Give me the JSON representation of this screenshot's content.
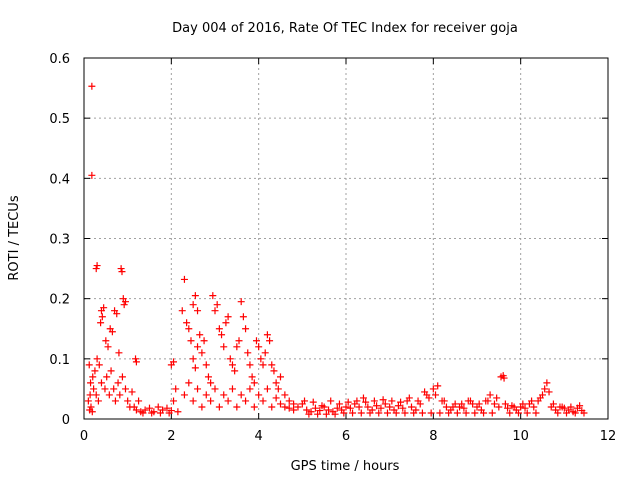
{
  "chart_data": {
    "type": "scatter",
    "title": "Day 004 of 2016, Rate Of TEC Index for receiver goja",
    "xlabel": "GPS time / hours",
    "ylabel": "ROTI / TECUs",
    "xlim": [
      0,
      12
    ],
    "ylim": [
      0,
      0.6
    ],
    "xticks": [
      "0",
      "2",
      "4",
      "6",
      "8",
      "10",
      "12"
    ],
    "yticks": [
      "0",
      "0.1",
      "0.2",
      "0.3",
      "0.4",
      "0.5",
      "0.6"
    ],
    "grid": true,
    "marker": "plus",
    "series_color": "#ff0000",
    "series": [
      {
        "name": "ROTI",
        "points": [
          [
            0.18,
            0.553
          ],
          [
            0.18,
            0.405
          ],
          [
            0.3,
            0.255
          ],
          [
            0.28,
            0.25
          ],
          [
            0.85,
            0.25
          ],
          [
            0.87,
            0.245
          ],
          [
            0.9,
            0.2
          ],
          [
            0.95,
            0.195
          ],
          [
            0.92,
            0.19
          ],
          [
            0.4,
            0.18
          ],
          [
            0.42,
            0.17
          ],
          [
            0.38,
            0.16
          ],
          [
            0.45,
            0.185
          ],
          [
            0.7,
            0.18
          ],
          [
            0.75,
            0.175
          ],
          [
            0.6,
            0.15
          ],
          [
            0.5,
            0.13
          ],
          [
            0.55,
            0.12
          ],
          [
            0.65,
            0.145
          ],
          [
            0.8,
            0.11
          ],
          [
            0.3,
            0.1
          ],
          [
            0.35,
            0.09
          ],
          [
            0.25,
            0.08
          ],
          [
            0.2,
            0.07
          ],
          [
            0.15,
            0.06
          ],
          [
            0.22,
            0.05
          ],
          [
            0.28,
            0.04
          ],
          [
            0.33,
            0.03
          ],
          [
            0.4,
            0.06
          ],
          [
            0.48,
            0.05
          ],
          [
            0.52,
            0.07
          ],
          [
            0.58,
            0.04
          ],
          [
            0.62,
            0.08
          ],
          [
            0.68,
            0.05
          ],
          [
            0.72,
            0.03
          ],
          [
            0.78,
            0.06
          ],
          [
            0.82,
            0.04
          ],
          [
            0.88,
            0.07
          ],
          [
            0.95,
            0.05
          ],
          [
            1.0,
            0.03
          ],
          [
            1.05,
            0.02
          ],
          [
            1.1,
            0.045
          ],
          [
            1.15,
            0.02
          ],
          [
            1.2,
            0.015
          ],
          [
            1.25,
            0.03
          ],
          [
            1.18,
            0.1
          ],
          [
            1.2,
            0.095
          ],
          [
            1.3,
            0.012
          ],
          [
            0.12,
            0.09
          ],
          [
            0.14,
            0.04
          ],
          [
            0.16,
            0.02
          ],
          [
            0.1,
            0.03
          ],
          [
            0.13,
            0.015
          ],
          [
            0.19,
            0.012
          ],
          [
            1.4,
            0.015
          ],
          [
            1.5,
            0.018
          ],
          [
            1.6,
            0.012
          ],
          [
            1.7,
            0.02
          ],
          [
            1.8,
            0.015
          ],
          [
            1.9,
            0.018
          ],
          [
            2.0,
            0.014
          ],
          [
            2.05,
            0.03
          ],
          [
            2.1,
            0.05
          ],
          [
            2.0,
            0.09
          ],
          [
            2.05,
            0.095
          ],
          [
            2.3,
            0.232
          ],
          [
            2.35,
            0.16
          ],
          [
            2.4,
            0.15
          ],
          [
            2.25,
            0.18
          ],
          [
            2.5,
            0.19
          ],
          [
            2.55,
            0.205
          ],
          [
            2.6,
            0.18
          ],
          [
            2.45,
            0.13
          ],
          [
            2.5,
            0.1
          ],
          [
            2.55,
            0.085
          ],
          [
            2.6,
            0.12
          ],
          [
            2.65,
            0.14
          ],
          [
            2.7,
            0.11
          ],
          [
            2.75,
            0.13
          ],
          [
            2.8,
            0.09
          ],
          [
            2.85,
            0.07
          ],
          [
            2.9,
            0.06
          ],
          [
            2.95,
            0.205
          ],
          [
            3.0,
            0.18
          ],
          [
            3.05,
            0.19
          ],
          [
            3.1,
            0.15
          ],
          [
            3.15,
            0.14
          ],
          [
            3.2,
            0.12
          ],
          [
            3.25,
            0.16
          ],
          [
            3.3,
            0.17
          ],
          [
            3.35,
            0.1
          ],
          [
            3.4,
            0.09
          ],
          [
            3.45,
            0.08
          ],
          [
            3.5,
            0.12
          ],
          [
            3.55,
            0.13
          ],
          [
            3.6,
            0.195
          ],
          [
            3.65,
            0.17
          ],
          [
            3.7,
            0.15
          ],
          [
            3.75,
            0.11
          ],
          [
            3.8,
            0.09
          ],
          [
            3.85,
            0.07
          ],
          [
            3.9,
            0.06
          ],
          [
            3.95,
            0.13
          ],
          [
            4.0,
            0.12
          ],
          [
            4.05,
            0.1
          ],
          [
            4.1,
            0.09
          ],
          [
            4.15,
            0.11
          ],
          [
            4.2,
            0.14
          ],
          [
            4.25,
            0.13
          ],
          [
            4.3,
            0.09
          ],
          [
            4.35,
            0.08
          ],
          [
            4.4,
            0.06
          ],
          [
            4.45,
            0.05
          ],
          [
            4.5,
            0.07
          ],
          [
            4.6,
            0.04
          ],
          [
            4.7,
            0.03
          ],
          [
            4.8,
            0.025
          ],
          [
            2.3,
            0.04
          ],
          [
            2.4,
            0.06
          ],
          [
            2.5,
            0.03
          ],
          [
            2.6,
            0.05
          ],
          [
            2.7,
            0.02
          ],
          [
            2.8,
            0.04
          ],
          [
            2.9,
            0.03
          ],
          [
            3.0,
            0.05
          ],
          [
            3.1,
            0.02
          ],
          [
            3.2,
            0.04
          ],
          [
            3.3,
            0.03
          ],
          [
            3.4,
            0.05
          ],
          [
            3.5,
            0.02
          ],
          [
            3.6,
            0.04
          ],
          [
            3.7,
            0.03
          ],
          [
            3.8,
            0.05
          ],
          [
            3.9,
            0.02
          ],
          [
            4.0,
            0.04
          ],
          [
            4.1,
            0.03
          ],
          [
            4.2,
            0.05
          ],
          [
            4.3,
            0.02
          ],
          [
            4.4,
            0.035
          ],
          [
            4.5,
            0.025
          ],
          [
            4.6,
            0.02
          ],
          [
            4.7,
            0.018
          ],
          [
            4.8,
            0.015
          ],
          [
            4.9,
            0.02
          ],
          [
            5.0,
            0.025
          ],
          [
            5.1,
            0.015
          ],
          [
            5.2,
            0.012
          ],
          [
            5.3,
            0.018
          ],
          [
            5.4,
            0.014
          ],
          [
            5.5,
            0.02
          ],
          [
            5.6,
            0.015
          ],
          [
            5.7,
            0.012
          ],
          [
            5.8,
            0.018
          ],
          [
            5.9,
            0.015
          ],
          [
            6.0,
            0.02
          ],
          [
            6.1,
            0.018
          ],
          [
            6.2,
            0.025
          ],
          [
            6.3,
            0.02
          ],
          [
            6.4,
            0.035
          ],
          [
            6.5,
            0.02
          ],
          [
            6.6,
            0.015
          ],
          [
            6.7,
            0.022
          ],
          [
            6.8,
            0.018
          ],
          [
            6.9,
            0.025
          ],
          [
            7.0,
            0.02
          ],
          [
            7.1,
            0.015
          ],
          [
            7.2,
            0.022
          ],
          [
            7.3,
            0.018
          ],
          [
            7.4,
            0.03
          ],
          [
            7.5,
            0.02
          ],
          [
            7.6,
            0.015
          ],
          [
            7.7,
            0.025
          ],
          [
            7.8,
            0.045
          ],
          [
            7.85,
            0.04
          ],
          [
            7.9,
            0.035
          ],
          [
            8.0,
            0.05
          ],
          [
            8.1,
            0.055
          ],
          [
            8.2,
            0.03
          ],
          [
            8.3,
            0.02
          ],
          [
            8.4,
            0.015
          ],
          [
            8.5,
            0.025
          ],
          [
            8.6,
            0.02
          ],
          [
            8.7,
            0.018
          ],
          [
            8.8,
            0.03
          ],
          [
            8.9,
            0.025
          ],
          [
            9.0,
            0.02
          ],
          [
            9.1,
            0.015
          ],
          [
            9.2,
            0.03
          ],
          [
            9.3,
            0.04
          ],
          [
            9.4,
            0.025
          ],
          [
            9.5,
            0.02
          ],
          [
            9.55,
            0.07
          ],
          [
            9.6,
            0.072
          ],
          [
            9.62,
            0.068
          ],
          [
            9.7,
            0.018
          ],
          [
            9.8,
            0.022
          ],
          [
            9.9,
            0.015
          ],
          [
            10.0,
            0.02
          ],
          [
            10.1,
            0.018
          ],
          [
            10.2,
            0.025
          ],
          [
            10.3,
            0.02
          ],
          [
            10.4,
            0.03
          ],
          [
            10.5,
            0.04
          ],
          [
            10.55,
            0.05
          ],
          [
            10.6,
            0.06
          ],
          [
            10.65,
            0.045
          ],
          [
            10.7,
            0.02
          ],
          [
            10.8,
            0.015
          ],
          [
            10.9,
            0.02
          ],
          [
            11.0,
            0.018
          ],
          [
            11.1,
            0.015
          ],
          [
            11.2,
            0.012
          ],
          [
            11.3,
            0.018
          ],
          [
            11.4,
            0.014
          ],
          [
            11.45,
            0.01
          ],
          [
            5.05,
            0.03
          ],
          [
            5.25,
            0.028
          ],
          [
            5.45,
            0.022
          ],
          [
            5.65,
            0.03
          ],
          [
            5.85,
            0.025
          ],
          [
            6.05,
            0.028
          ],
          [
            6.25,
            0.03
          ],
          [
            6.45,
            0.028
          ],
          [
            6.65,
            0.03
          ],
          [
            6.85,
            0.032
          ],
          [
            7.05,
            0.03
          ],
          [
            7.25,
            0.028
          ],
          [
            7.45,
            0.035
          ],
          [
            7.65,
            0.03
          ],
          [
            8.05,
            0.04
          ],
          [
            8.25,
            0.03
          ],
          [
            8.45,
            0.02
          ],
          [
            8.65,
            0.025
          ],
          [
            8.85,
            0.03
          ],
          [
            9.05,
            0.025
          ],
          [
            9.25,
            0.03
          ],
          [
            9.45,
            0.035
          ],
          [
            9.65,
            0.025
          ],
          [
            9.85,
            0.02
          ],
          [
            10.05,
            0.025
          ],
          [
            10.25,
            0.03
          ],
          [
            10.45,
            0.035
          ],
          [
            10.75,
            0.025
          ],
          [
            10.95,
            0.02
          ],
          [
            11.15,
            0.02
          ],
          [
            11.35,
            0.022
          ],
          [
            1.35,
            0.01
          ],
          [
            1.55,
            0.01
          ],
          [
            1.75,
            0.01
          ],
          [
            1.95,
            0.01
          ],
          [
            2.15,
            0.012
          ],
          [
            5.15,
            0.008
          ],
          [
            5.35,
            0.008
          ],
          [
            5.55,
            0.008
          ],
          [
            5.75,
            0.008
          ],
          [
            5.95,
            0.01
          ],
          [
            6.15,
            0.01
          ],
          [
            6.35,
            0.01
          ],
          [
            6.55,
            0.01
          ],
          [
            6.75,
            0.01
          ],
          [
            6.95,
            0.01
          ],
          [
            7.15,
            0.01
          ],
          [
            7.35,
            0.01
          ],
          [
            7.55,
            0.01
          ],
          [
            7.75,
            0.01
          ],
          [
            7.95,
            0.01
          ],
          [
            8.15,
            0.01
          ],
          [
            8.35,
            0.01
          ],
          [
            8.55,
            0.01
          ],
          [
            8.75,
            0.01
          ],
          [
            8.95,
            0.01
          ],
          [
            9.15,
            0.01
          ],
          [
            9.35,
            0.01
          ],
          [
            9.75,
            0.01
          ],
          [
            9.95,
            0.01
          ],
          [
            10.15,
            0.01
          ],
          [
            10.35,
            0.01
          ],
          [
            10.85,
            0.01
          ],
          [
            11.05,
            0.01
          ],
          [
            11.25,
            0.01
          ]
        ]
      }
    ]
  }
}
